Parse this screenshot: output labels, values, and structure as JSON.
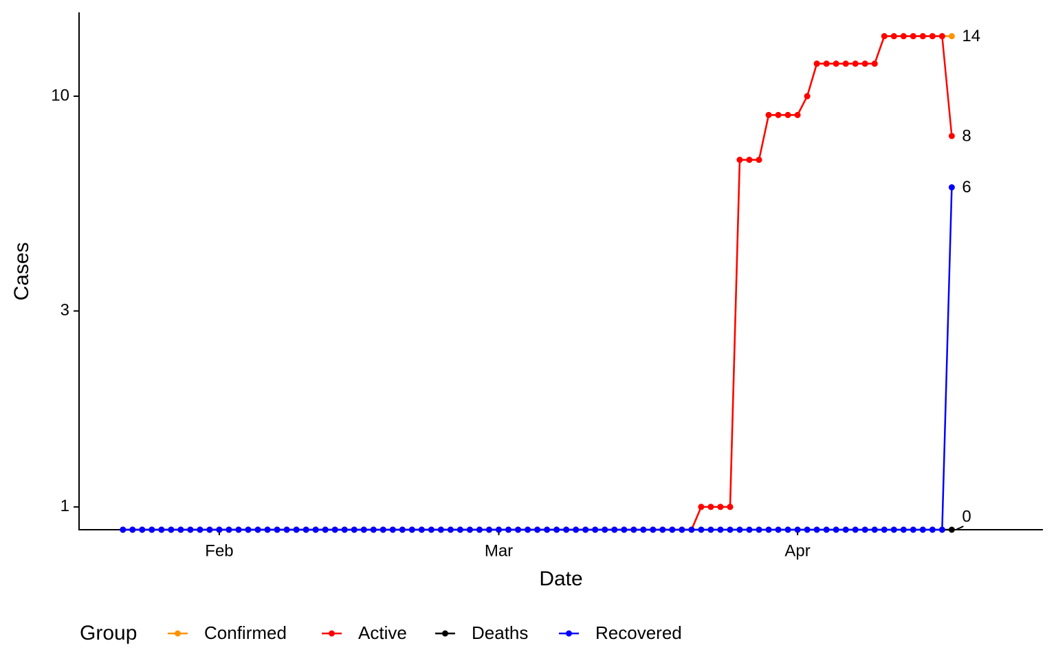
{
  "chart_data": {
    "type": "line",
    "x_label": "Date",
    "y_label": "Cases",
    "legend_title": "Group",
    "legend_position": "bottom",
    "log_y": true,
    "grid": false,
    "x": [
      22,
      23,
      24,
      25,
      26,
      27,
      28,
      29,
      30,
      31,
      32,
      33,
      34,
      35,
      36,
      37,
      38,
      39,
      40,
      41,
      42,
      43,
      44,
      45,
      46,
      47,
      48,
      49,
      50,
      51,
      52,
      53,
      54,
      55,
      56,
      57,
      58,
      59,
      60,
      61,
      62,
      63,
      64,
      65,
      66,
      67,
      68,
      69,
      70,
      71,
      72,
      73,
      74,
      75,
      76,
      77,
      78,
      79,
      80,
      81,
      82,
      83,
      84,
      85,
      86,
      87,
      88,
      89,
      90,
      91,
      92,
      93,
      94,
      95,
      96,
      97,
      98,
      99,
      100,
      101,
      102,
      103,
      104,
      105,
      106,
      107,
      108
    ],
    "xlim": [
      17.45,
      117.46
    ],
    "xticks": [
      {
        "value": 32,
        "label": "Feb"
      },
      {
        "value": 61,
        "label": "Mar"
      },
      {
        "value": 92,
        "label": "Apr"
      }
    ],
    "ylim": [
      0.88,
      16
    ],
    "yticks": [
      1,
      3,
      10
    ],
    "series": [
      {
        "name": "Confirmed",
        "color": "#ff9300",
        "values": [
          0,
          0,
          0,
          0,
          0,
          0,
          0,
          0,
          0,
          0,
          0,
          0,
          0,
          0,
          0,
          0,
          0,
          0,
          0,
          0,
          0,
          0,
          0,
          0,
          0,
          0,
          0,
          0,
          0,
          0,
          0,
          0,
          0,
          0,
          0,
          0,
          0,
          0,
          0,
          0,
          0,
          0,
          0,
          0,
          0,
          0,
          0,
          0,
          0,
          0,
          0,
          0,
          0,
          0,
          0,
          0,
          0,
          0,
          0,
          0,
          1,
          1,
          1,
          1,
          7,
          7,
          7,
          9,
          9,
          9,
          9,
          10,
          12,
          12,
          12,
          12,
          12,
          12,
          12,
          14,
          14,
          14,
          14,
          14,
          14,
          14,
          14
        ]
      },
      {
        "name": "Active",
        "color": "#ff0000",
        "values": [
          0,
          0,
          0,
          0,
          0,
          0,
          0,
          0,
          0,
          0,
          0,
          0,
          0,
          0,
          0,
          0,
          0,
          0,
          0,
          0,
          0,
          0,
          0,
          0,
          0,
          0,
          0,
          0,
          0,
          0,
          0,
          0,
          0,
          0,
          0,
          0,
          0,
          0,
          0,
          0,
          0,
          0,
          0,
          0,
          0,
          0,
          0,
          0,
          0,
          0,
          0,
          0,
          0,
          0,
          0,
          0,
          0,
          0,
          0,
          0,
          1,
          1,
          1,
          1,
          7,
          7,
          7,
          9,
          9,
          9,
          9,
          10,
          12,
          12,
          12,
          12,
          12,
          12,
          12,
          14,
          14,
          14,
          14,
          14,
          14,
          14,
          8
        ]
      },
      {
        "name": "Deaths",
        "color": "#000000",
        "values": [
          0,
          0,
          0,
          0,
          0,
          0,
          0,
          0,
          0,
          0,
          0,
          0,
          0,
          0,
          0,
          0,
          0,
          0,
          0,
          0,
          0,
          0,
          0,
          0,
          0,
          0,
          0,
          0,
          0,
          0,
          0,
          0,
          0,
          0,
          0,
          0,
          0,
          0,
          0,
          0,
          0,
          0,
          0,
          0,
          0,
          0,
          0,
          0,
          0,
          0,
          0,
          0,
          0,
          0,
          0,
          0,
          0,
          0,
          0,
          0,
          0,
          0,
          0,
          0,
          0,
          0,
          0,
          0,
          0,
          0,
          0,
          0,
          0,
          0,
          0,
          0,
          0,
          0,
          0,
          0,
          0,
          0,
          0,
          0,
          0,
          0,
          0
        ]
      },
      {
        "name": "Recovered",
        "color": "#0000ff",
        "values": [
          0,
          0,
          0,
          0,
          0,
          0,
          0,
          0,
          0,
          0,
          0,
          0,
          0,
          0,
          0,
          0,
          0,
          0,
          0,
          0,
          0,
          0,
          0,
          0,
          0,
          0,
          0,
          0,
          0,
          0,
          0,
          0,
          0,
          0,
          0,
          0,
          0,
          0,
          0,
          0,
          0,
          0,
          0,
          0,
          0,
          0,
          0,
          0,
          0,
          0,
          0,
          0,
          0,
          0,
          0,
          0,
          0,
          0,
          0,
          0,
          0,
          0,
          0,
          0,
          0,
          0,
          0,
          0,
          0,
          0,
          0,
          0,
          0,
          0,
          0,
          0,
          0,
          0,
          0,
          0,
          0,
          0,
          0,
          0,
          0,
          0,
          6
        ]
      }
    ]
  }
}
